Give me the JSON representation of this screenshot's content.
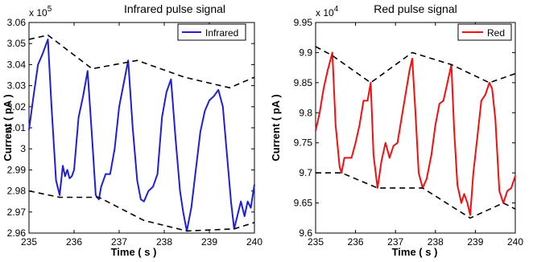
{
  "chart_data": [
    {
      "type": "line",
      "title": "Infrared pulse signal",
      "xlabel": "Time ( s )",
      "ylabel": "Current ( pA )",
      "y_multiplier_label": "x 10",
      "y_multiplier_exponent": "5",
      "xlim": [
        235,
        240
      ],
      "ylim": [
        2.96,
        3.06
      ],
      "xticks": [
        "235",
        "236",
        "237",
        "238",
        "239",
        "240"
      ],
      "yticks": [
        "2.96",
        "2.97",
        "2.98",
        "2.99",
        "3",
        "3.01",
        "3.02",
        "3.03",
        "3.04",
        "3.05",
        "3.06"
      ],
      "grid": false,
      "legend_position": "top-right",
      "series": [
        {
          "name": "Infrared",
          "color": "#1f1fd6",
          "style": "solid",
          "x": [
            235.0,
            235.1,
            235.2,
            235.3,
            235.42,
            235.5,
            235.6,
            235.68,
            235.75,
            235.8,
            235.85,
            235.9,
            235.95,
            236.0,
            236.1,
            236.2,
            236.3,
            236.4,
            236.48,
            236.55,
            236.6,
            236.7,
            236.8,
            236.9,
            237.0,
            237.1,
            237.2,
            237.3,
            237.4,
            237.48,
            237.55,
            237.65,
            237.75,
            237.85,
            237.95,
            238.05,
            238.15,
            238.25,
            238.35,
            238.42,
            238.5,
            238.6,
            238.7,
            238.8,
            238.9,
            239.0,
            239.1,
            239.2,
            239.3,
            239.4,
            239.48,
            239.55,
            239.62,
            239.7,
            239.78,
            239.85,
            239.92,
            240.0
          ],
          "y": [
            3.009,
            3.025,
            3.04,
            3.045,
            3.052,
            3.02,
            2.985,
            2.978,
            2.992,
            2.987,
            2.99,
            2.986,
            2.987,
            2.99,
            3.015,
            3.025,
            3.037,
            3.005,
            2.978,
            2.976,
            2.982,
            2.988,
            2.988,
            3.0,
            3.02,
            3.031,
            3.042,
            3.01,
            2.985,
            2.976,
            2.975,
            2.98,
            2.982,
            2.988,
            3.015,
            3.027,
            3.033,
            3.005,
            2.98,
            2.97,
            2.961,
            2.972,
            2.99,
            3.008,
            3.018,
            3.023,
            3.025,
            3.028,
            3.02,
            2.995,
            2.975,
            2.962,
            2.968,
            2.975,
            2.968,
            2.975,
            2.972,
            2.983
          ]
        },
        {
          "name": "",
          "color": "#000000",
          "style": "dashed",
          "x": [
            235.0,
            235.42,
            236.4,
            237.4,
            238.45,
            239.45,
            240.0
          ],
          "y": [
            3.052,
            3.054,
            3.038,
            3.042,
            3.034,
            3.029,
            3.034
          ]
        },
        {
          "name": "",
          "color": "#000000",
          "style": "dashed",
          "x": [
            235.0,
            235.68,
            236.55,
            237.55,
            238.5,
            239.55,
            240.0
          ],
          "y": [
            2.98,
            2.977,
            2.977,
            2.966,
            2.961,
            2.962,
            2.965
          ]
        }
      ]
    },
    {
      "type": "line",
      "title": "Red pulse signal",
      "xlabel": "Time ( s )",
      "ylabel": "Current ( pA )",
      "y_multiplier_label": "x 10",
      "y_multiplier_exponent": "4",
      "xlim": [
        235,
        240
      ],
      "ylim": [
        9.6,
        9.95
      ],
      "xticks": [
        "235",
        "236",
        "237",
        "238",
        "239",
        "240"
      ],
      "yticks": [
        "9.6",
        "9.65",
        "9.7",
        "9.75",
        "9.8",
        "9.85",
        "9.9",
        "9.95"
      ],
      "grid": false,
      "legend_position": "top-right",
      "series": [
        {
          "name": "Red",
          "color": "#ee1111",
          "style": "solid",
          "x": [
            235.0,
            235.1,
            235.2,
            235.3,
            235.42,
            235.5,
            235.6,
            235.65,
            235.72,
            235.8,
            235.9,
            236.0,
            236.1,
            236.2,
            236.3,
            236.38,
            236.45,
            236.55,
            236.65,
            236.75,
            236.85,
            236.95,
            237.05,
            237.15,
            237.25,
            237.35,
            237.42,
            237.5,
            237.58,
            237.68,
            237.78,
            237.9,
            238.0,
            238.1,
            238.2,
            238.3,
            238.4,
            238.47,
            238.55,
            238.65,
            238.72,
            238.8,
            238.87,
            238.95,
            239.05,
            239.15,
            239.25,
            239.35,
            239.42,
            239.5,
            239.6,
            239.7,
            239.8,
            239.9,
            240.0
          ],
          "y": [
            9.77,
            9.8,
            9.84,
            9.87,
            9.9,
            9.78,
            9.71,
            9.7,
            9.725,
            9.725,
            9.725,
            9.75,
            9.78,
            9.82,
            9.82,
            9.85,
            9.73,
            9.675,
            9.72,
            9.75,
            9.725,
            9.745,
            9.75,
            9.79,
            9.83,
            9.87,
            9.89,
            9.8,
            9.7,
            9.675,
            9.69,
            9.73,
            9.78,
            9.815,
            9.82,
            9.85,
            9.88,
            9.77,
            9.68,
            9.65,
            9.665,
            9.65,
            9.63,
            9.7,
            9.76,
            9.82,
            9.83,
            9.85,
            9.84,
            9.79,
            9.67,
            9.65,
            9.67,
            9.675,
            9.695
          ]
        },
        {
          "name": "",
          "color": "#000000",
          "style": "dashed",
          "x": [
            235.0,
            235.42,
            236.38,
            237.42,
            238.4,
            239.35,
            240.0
          ],
          "y": [
            9.91,
            9.895,
            9.85,
            9.9,
            9.88,
            9.85,
            9.865
          ]
        },
        {
          "name": "",
          "color": "#000000",
          "style": "dashed",
          "x": [
            235.0,
            235.65,
            236.55,
            237.68,
            238.87,
            239.7,
            240.0
          ],
          "y": [
            9.7,
            9.7,
            9.675,
            9.675,
            9.625,
            9.65,
            9.64
          ]
        }
      ]
    }
  ]
}
